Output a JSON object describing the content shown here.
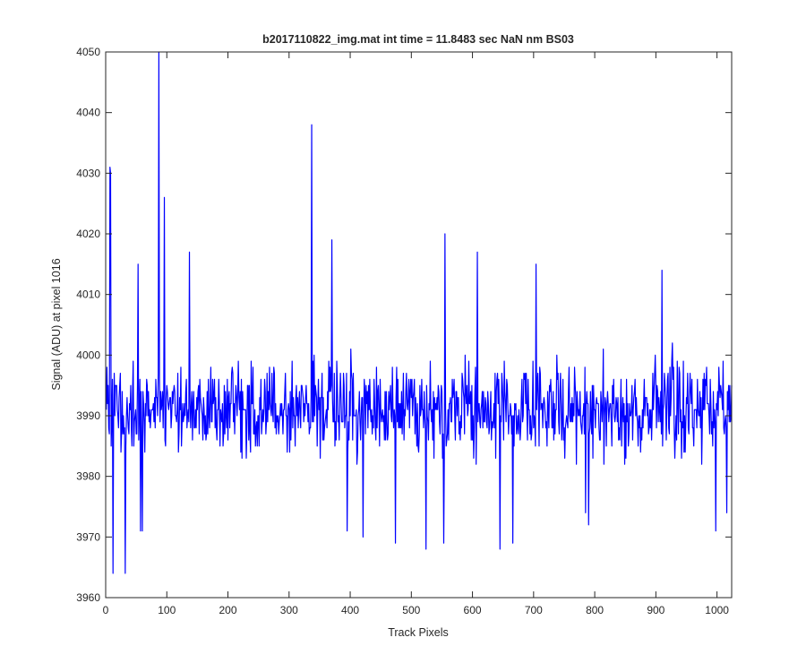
{
  "chart_data": {
    "type": "line",
    "title": "b2017110822_img.mat int time = 11.8483 sec  NaN nm BS03",
    "xlabel": "Track Pixels",
    "ylabel": "Signal (ADU) at pixel 1016",
    "xlim": [
      0,
      1024
    ],
    "ylim": [
      3960,
      4050
    ],
    "xticks": [
      0,
      100,
      200,
      300,
      400,
      500,
      600,
      700,
      800,
      900,
      1000
    ],
    "yticks": [
      3960,
      3970,
      3980,
      3990,
      4000,
      4010,
      4020,
      4030,
      4040,
      4050
    ],
    "grid": false,
    "legend": "none",
    "series": [
      {
        "color": "#0000ff",
        "x_start": 1,
        "x_step": 1,
        "n_points": 1024,
        "baseline_mean": 3991,
        "typical_range": [
          3975,
          4007
        ],
        "notable_points": [
          {
            "x": 7,
            "y": 4031
          },
          {
            "x": 8,
            "y": 4030
          },
          {
            "x": 12,
            "y": 3964
          },
          {
            "x": 32,
            "y": 3964
          },
          {
            "x": 53,
            "y": 4015
          },
          {
            "x": 57,
            "y": 3971
          },
          {
            "x": 60,
            "y": 3971
          },
          {
            "x": 87,
            "y": 4050
          },
          {
            "x": 96,
            "y": 4026
          },
          {
            "x": 137,
            "y": 4017
          },
          {
            "x": 337,
            "y": 4038
          },
          {
            "x": 370,
            "y": 4019
          },
          {
            "x": 395,
            "y": 3971
          },
          {
            "x": 421,
            "y": 3970
          },
          {
            "x": 474,
            "y": 3969
          },
          {
            "x": 524,
            "y": 3968
          },
          {
            "x": 553,
            "y": 3969
          },
          {
            "x": 555,
            "y": 4020
          },
          {
            "x": 608,
            "y": 4017
          },
          {
            "x": 645,
            "y": 3968
          },
          {
            "x": 666,
            "y": 3969
          },
          {
            "x": 704,
            "y": 4015
          },
          {
            "x": 785,
            "y": 3974
          },
          {
            "x": 790,
            "y": 3972
          },
          {
            "x": 910,
            "y": 4014
          },
          {
            "x": 998,
            "y": 3971
          },
          {
            "x": 1016,
            "y": 3974
          }
        ]
      }
    ]
  }
}
